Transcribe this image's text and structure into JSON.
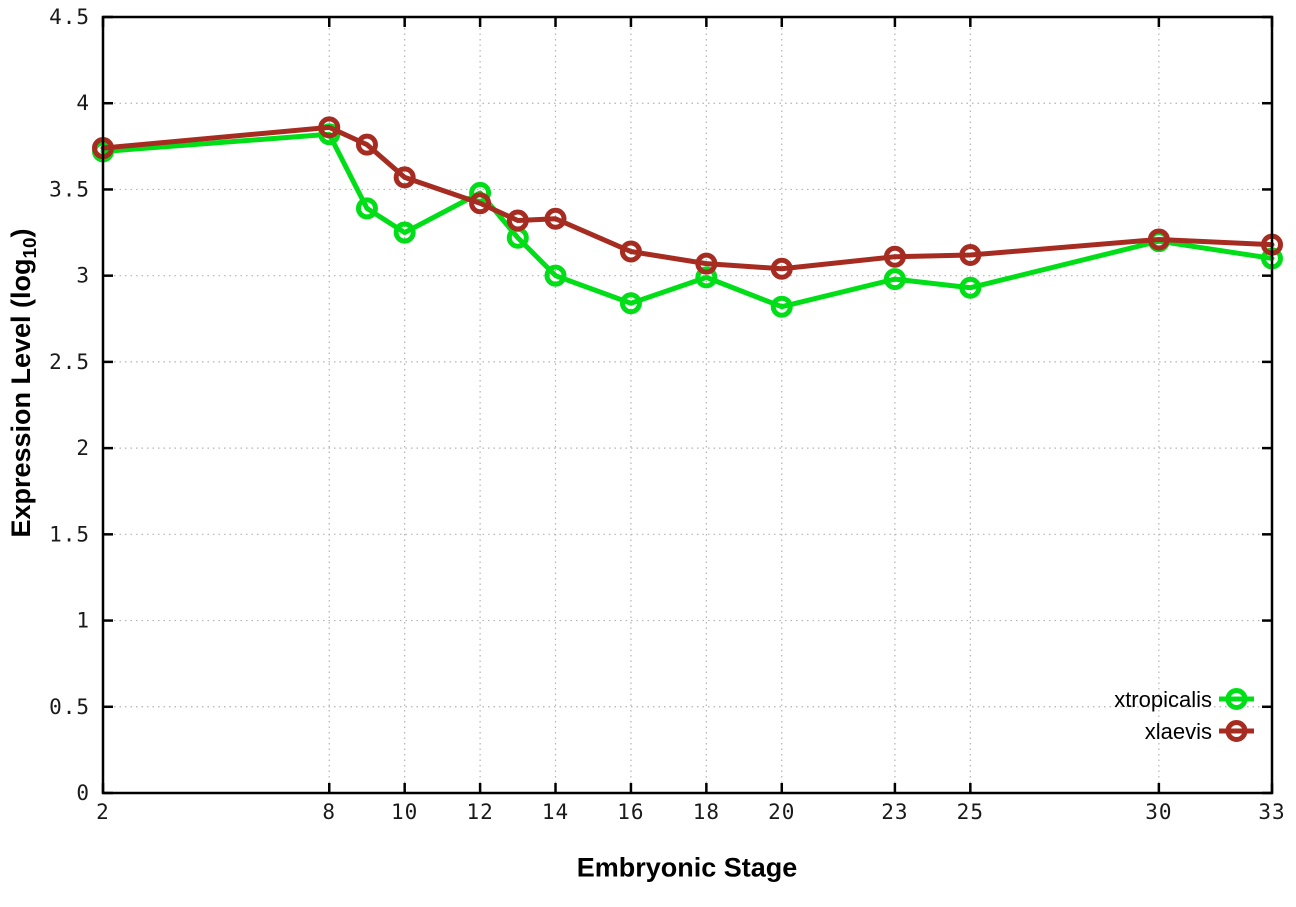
{
  "chart_data": {
    "type": "line",
    "title": "",
    "xlabel": "Embryonic Stage",
    "ylabel_prefix": "Expression Level (log",
    "ylabel_sub": "10",
    "ylabel_suffix": ")",
    "x": [
      2,
      8,
      9,
      10,
      12,
      13,
      14,
      16,
      18,
      20,
      23,
      25,
      30,
      33
    ],
    "series": [
      {
        "name": "xtropicalis",
        "color": "#00de17",
        "values": [
          3.72,
          3.82,
          3.39,
          3.25,
          3.48,
          3.22,
          3.0,
          2.84,
          2.99,
          2.82,
          2.98,
          2.93,
          3.2,
          3.1
        ]
      },
      {
        "name": "xlaevis",
        "color": "#a62c21",
        "values": [
          3.74,
          3.86,
          3.76,
          3.57,
          3.42,
          3.32,
          3.33,
          3.14,
          3.07,
          3.04,
          3.11,
          3.12,
          3.21,
          3.18
        ]
      }
    ],
    "xlim": [
      2,
      33
    ],
    "ylim": [
      0,
      4.5
    ],
    "xticks": {
      "values": [
        2,
        8,
        10,
        12,
        14,
        16,
        18,
        20,
        23,
        25,
        30,
        33
      ],
      "labels": [
        "2",
        "8",
        "10",
        "12",
        "14",
        "16",
        "18",
        "20",
        "23",
        "25",
        "30",
        "33"
      ]
    },
    "yticks": {
      "values": [
        0,
        0.5,
        1,
        1.5,
        2,
        2.5,
        3,
        3.5,
        4,
        4.5
      ],
      "labels": [
        "0",
        "0.5",
        "1",
        "1.5",
        "2",
        "2.5",
        "3",
        "3.5",
        "4",
        "4.5"
      ]
    },
    "grid": true,
    "legend_position": "bottom-right",
    "background": "#ffffff",
    "grid_color": "#b3b3b3",
    "axis_color": "#000000"
  }
}
